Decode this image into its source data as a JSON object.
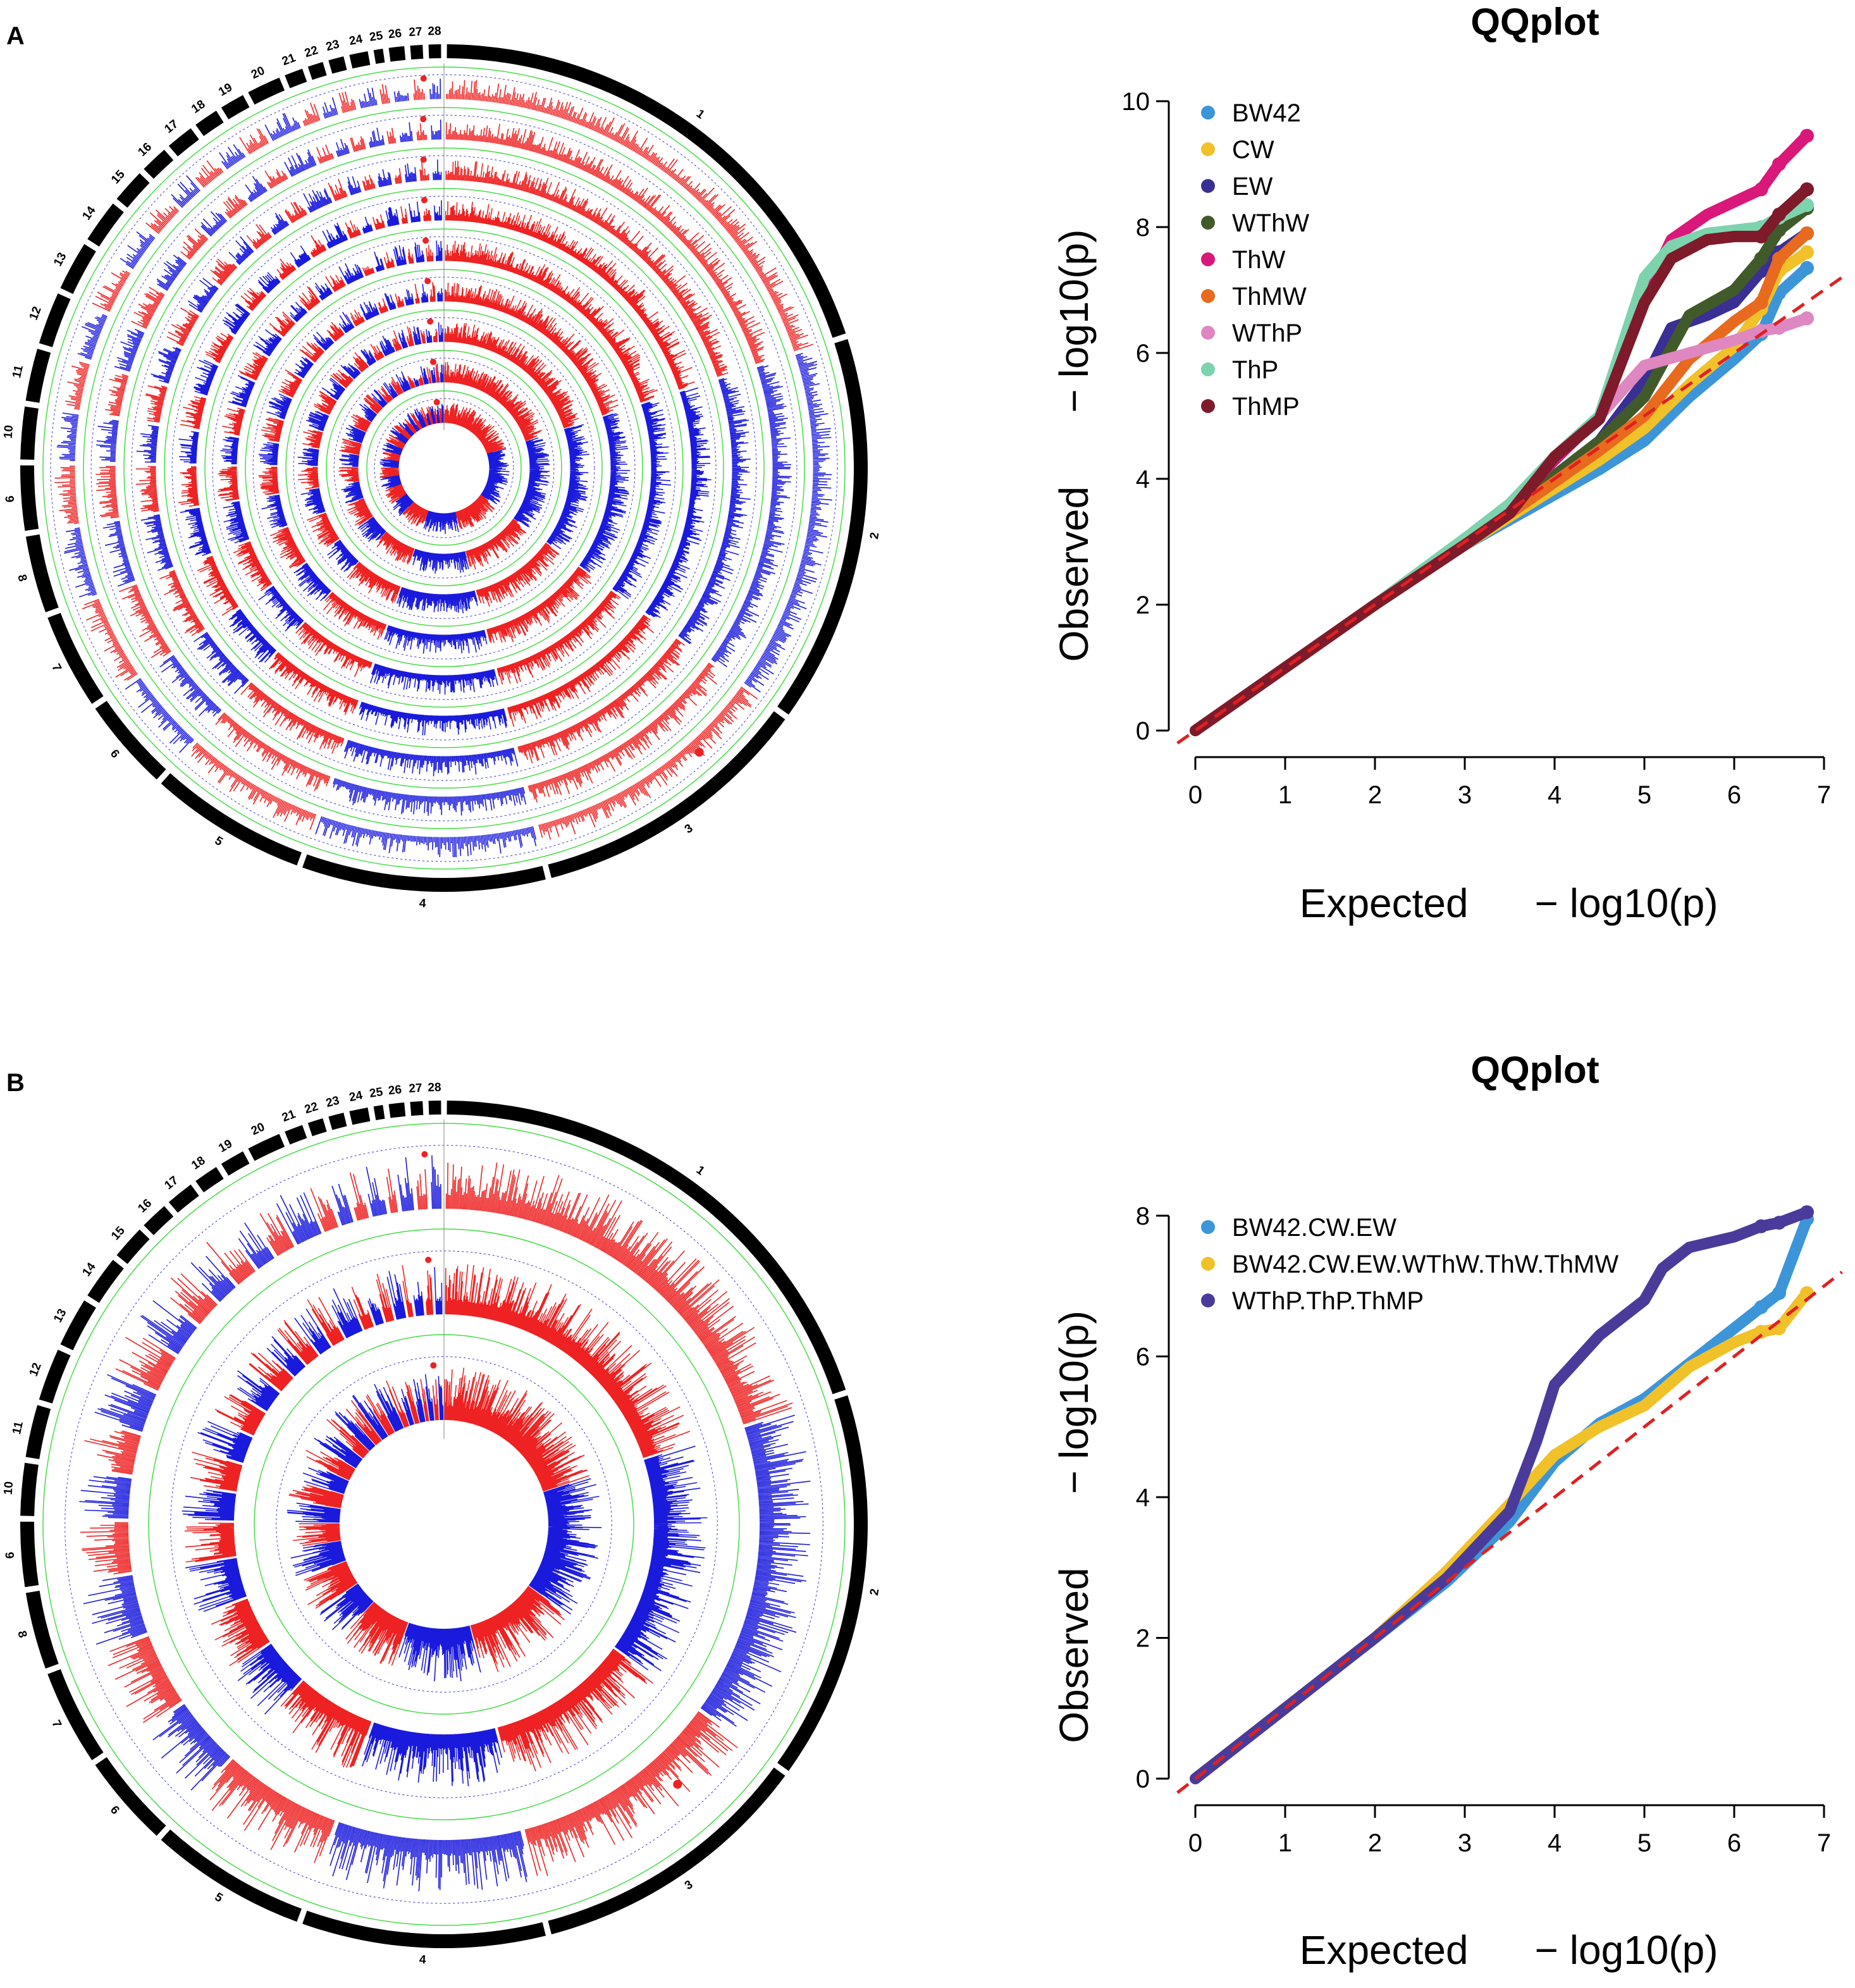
{
  "colors": {
    "red": "#ee2222",
    "blue": "#1a1add",
    "green_line": "#44dd44",
    "dashed_blue": "#3333cc",
    "ring_black": "#000000",
    "diag": "#e02020",
    "axis": "#000000"
  },
  "circos": [
    {
      "panel_label": "A",
      "chromosomes": [
        "1",
        "2",
        "3",
        "4",
        "5",
        "6",
        "7",
        "8",
        "9",
        "10",
        "11",
        "12",
        "13",
        "14",
        "15",
        "16",
        "17",
        "18",
        "19",
        "20",
        "21",
        "22",
        "23",
        "24",
        "25",
        "26",
        "27",
        "28"
      ],
      "chrom_weights": [
        16.8,
        12.6,
        9.2,
        7.9,
        5.1,
        3.0,
        3.1,
        2.5,
        2.1,
        1.7,
        1.7,
        1.7,
        1.6,
        1.4,
        1.1,
        0.9,
        0.9,
        0.8,
        0.8,
        1.1,
        0.6,
        0.5,
        0.5,
        0.6,
        0.3,
        0.5,
        0.4,
        0.4
      ],
      "track_count": 9
    },
    {
      "panel_label": "B",
      "chromosomes": [
        "1",
        "2",
        "3",
        "4",
        "5",
        "6",
        "7",
        "8",
        "9",
        "10",
        "11",
        "12",
        "13",
        "14",
        "15",
        "16",
        "17",
        "18",
        "19",
        "20",
        "21",
        "22",
        "23",
        "24",
        "25",
        "26",
        "27",
        "28"
      ],
      "chrom_weights": [
        16.8,
        12.6,
        9.2,
        7.9,
        5.1,
        3.0,
        3.1,
        2.5,
        2.1,
        1.7,
        1.7,
        1.7,
        1.6,
        1.4,
        1.1,
        0.9,
        0.9,
        0.8,
        0.8,
        1.1,
        0.6,
        0.5,
        0.5,
        0.6,
        0.3,
        0.5,
        0.4,
        0.4
      ],
      "track_count": 3
    }
  ],
  "chart_data": [
    {
      "type": "scatter",
      "title": "QQplot",
      "xlabel": "Expected",
      "ylabel": "Observed",
      "axis_math": "− log10(p)",
      "xlim": [
        0,
        7
      ],
      "ylim": [
        0,
        10
      ],
      "x_ticks": [
        "0",
        "1",
        "2",
        "3",
        "4",
        "5",
        "6",
        "7"
      ],
      "y_ticks": [
        "0",
        "2",
        "4",
        "6",
        "8",
        "10"
      ],
      "legend_position": "top-left",
      "reference_line": "y = x",
      "series": [
        {
          "name": "BW42",
          "color": "#3d95d9",
          "points": [
            [
              0,
              0
            ],
            [
              1,
              1
            ],
            [
              2,
              2
            ],
            [
              3,
              2.95
            ],
            [
              3.5,
              3.35
            ],
            [
              4,
              3.75
            ],
            [
              4.5,
              4.15
            ],
            [
              5,
              4.6
            ],
            [
              5.5,
              5.3
            ],
            [
              6,
              5.9
            ],
            [
              6.3,
              6.3
            ],
            [
              6.5,
              6.95
            ],
            [
              6.81,
              7.35
            ]
          ]
        },
        {
          "name": "CW",
          "color": "#f1c12a",
          "points": [
            [
              0,
              0
            ],
            [
              1,
              1
            ],
            [
              2,
              2
            ],
            [
              3,
              2.95
            ],
            [
              3.5,
              3.4
            ],
            [
              4,
              3.85
            ],
            [
              4.5,
              4.3
            ],
            [
              5,
              4.8
            ],
            [
              5.5,
              5.5
            ],
            [
              6,
              6.1
            ],
            [
              6.3,
              6.7
            ],
            [
              6.5,
              7.3
            ],
            [
              6.81,
              7.6
            ]
          ]
        },
        {
          "name": "EW",
          "color": "#3a2f95",
          "points": [
            [
              0,
              0
            ],
            [
              1,
              1
            ],
            [
              2,
              2
            ],
            [
              3,
              3
            ],
            [
              3.5,
              3.5
            ],
            [
              4,
              4.05
            ],
            [
              4.5,
              4.6
            ],
            [
              5,
              5.55
            ],
            [
              5.3,
              6.4
            ],
            [
              5.7,
              6.6
            ],
            [
              6,
              6.8
            ],
            [
              6.3,
              7.3
            ],
            [
              6.5,
              7.6
            ],
            [
              6.81,
              7.9
            ]
          ]
        },
        {
          "name": "WThW",
          "color": "#415a2a",
          "points": [
            [
              0,
              0
            ],
            [
              1,
              1
            ],
            [
              2,
              2
            ],
            [
              3,
              3
            ],
            [
              3.5,
              3.5
            ],
            [
              4,
              4.05
            ],
            [
              4.5,
              4.6
            ],
            [
              5,
              5.3
            ],
            [
              5.5,
              6.6
            ],
            [
              6,
              7.0
            ],
            [
              6.3,
              7.5
            ],
            [
              6.5,
              7.95
            ],
            [
              6.81,
              8.3
            ]
          ]
        },
        {
          "name": "ThW",
          "color": "#d9187a",
          "points": [
            [
              0,
              0
            ],
            [
              1,
              1
            ],
            [
              2,
              2
            ],
            [
              3,
              3.0
            ],
            [
              3.5,
              3.55
            ],
            [
              4,
              4.3
            ],
            [
              4.5,
              5.0
            ],
            [
              5,
              6.9
            ],
            [
              5.3,
              7.8
            ],
            [
              5.7,
              8.2
            ],
            [
              6,
              8.4
            ],
            [
              6.3,
              8.6
            ],
            [
              6.5,
              9.0
            ],
            [
              6.81,
              9.45
            ]
          ]
        },
        {
          "name": "ThMW",
          "color": "#e86a1e",
          "points": [
            [
              0,
              0
            ],
            [
              1,
              1
            ],
            [
              2,
              2
            ],
            [
              3,
              3
            ],
            [
              3.5,
              3.45
            ],
            [
              4,
              3.95
            ],
            [
              4.5,
              4.45
            ],
            [
              5,
              5.0
            ],
            [
              5.5,
              5.9
            ],
            [
              6,
              6.5
            ],
            [
              6.3,
              6.8
            ],
            [
              6.5,
              7.5
            ],
            [
              6.81,
              7.9
            ]
          ]
        },
        {
          "name": "WThP",
          "color": "#df87c0",
          "points": [
            [
              0,
              0
            ],
            [
              1,
              1
            ],
            [
              2,
              2
            ],
            [
              3,
              3
            ],
            [
              3.5,
              3.6
            ],
            [
              4,
              4.35
            ],
            [
              4.5,
              5.0
            ],
            [
              5,
              5.8
            ],
            [
              5.5,
              6.0
            ],
            [
              6,
              6.2
            ],
            [
              6.3,
              6.35
            ],
            [
              6.5,
              6.4
            ],
            [
              6.81,
              6.55
            ]
          ]
        },
        {
          "name": "ThP",
          "color": "#7dd3ad",
          "points": [
            [
              0,
              0
            ],
            [
              1,
              1
            ],
            [
              2,
              2
            ],
            [
              3,
              3.05
            ],
            [
              3.5,
              3.6
            ],
            [
              4,
              4.35
            ],
            [
              4.5,
              5.0
            ],
            [
              5,
              7.2
            ],
            [
              5.3,
              7.7
            ],
            [
              5.7,
              7.9
            ],
            [
              6,
              7.95
            ],
            [
              6.3,
              8.0
            ],
            [
              6.5,
              8.15
            ],
            [
              6.81,
              8.35
            ]
          ]
        },
        {
          "name": "ThMP",
          "color": "#7e1a2a",
          "points": [
            [
              0,
              0
            ],
            [
              1,
              1
            ],
            [
              2,
              2
            ],
            [
              3,
              2.95
            ],
            [
              3.5,
              3.45
            ],
            [
              4,
              4.35
            ],
            [
              4.5,
              4.95
            ],
            [
              5,
              6.8
            ],
            [
              5.3,
              7.5
            ],
            [
              5.7,
              7.8
            ],
            [
              6,
              7.85
            ],
            [
              6.3,
              7.85
            ],
            [
              6.5,
              8.2
            ],
            [
              6.81,
              8.6
            ]
          ]
        }
      ]
    },
    {
      "type": "scatter",
      "title": "QQplot",
      "xlabel": "Expected",
      "ylabel": "Observed",
      "axis_math": "− log10(p)",
      "xlim": [
        0,
        7
      ],
      "ylim": [
        0,
        8
      ],
      "x_ticks": [
        "0",
        "1",
        "2",
        "3",
        "4",
        "5",
        "6",
        "7"
      ],
      "y_ticks": [
        "0",
        "2",
        "4",
        "6",
        "8"
      ],
      "legend_position": "top-left",
      "reference_line": "y = x",
      "series": [
        {
          "name": "BW42.CW.EW",
          "color": "#3d95d9",
          "points": [
            [
              0,
              0
            ],
            [
              1,
              1
            ],
            [
              2,
              2
            ],
            [
              2.8,
              2.8
            ],
            [
              3.5,
              3.65
            ],
            [
              4,
              4.5
            ],
            [
              4.5,
              5.05
            ],
            [
              5,
              5.4
            ],
            [
              5.5,
              5.9
            ],
            [
              6,
              6.4
            ],
            [
              6.3,
              6.7
            ],
            [
              6.5,
              6.9
            ],
            [
              6.81,
              7.95
            ]
          ]
        },
        {
          "name": "BW42.CW.EW.WThW.ThW.ThMW",
          "color": "#f1c12a",
          "points": [
            [
              0,
              0
            ],
            [
              1,
              1
            ],
            [
              2,
              2
            ],
            [
              2.8,
              2.95
            ],
            [
              3.5,
              3.9
            ],
            [
              4,
              4.6
            ],
            [
              4.5,
              5.0
            ],
            [
              5,
              5.3
            ],
            [
              5.5,
              5.85
            ],
            [
              6,
              6.2
            ],
            [
              6.3,
              6.35
            ],
            [
              6.5,
              6.4
            ],
            [
              6.81,
              6.9
            ]
          ]
        },
        {
          "name": "WThP.ThP.ThMP",
          "color": "#4a3b9a",
          "points": [
            [
              0,
              0
            ],
            [
              1,
              1
            ],
            [
              2,
              2
            ],
            [
              2.8,
              2.85
            ],
            [
              3.5,
              3.8
            ],
            [
              3.8,
              4.8
            ],
            [
              4,
              5.6
            ],
            [
              4.5,
              6.3
            ],
            [
              5,
              6.8
            ],
            [
              5.2,
              7.25
            ],
            [
              5.5,
              7.55
            ],
            [
              6,
              7.7
            ],
            [
              6.3,
              7.85
            ],
            [
              6.5,
              7.9
            ],
            [
              6.81,
              8.05
            ]
          ]
        }
      ]
    }
  ]
}
